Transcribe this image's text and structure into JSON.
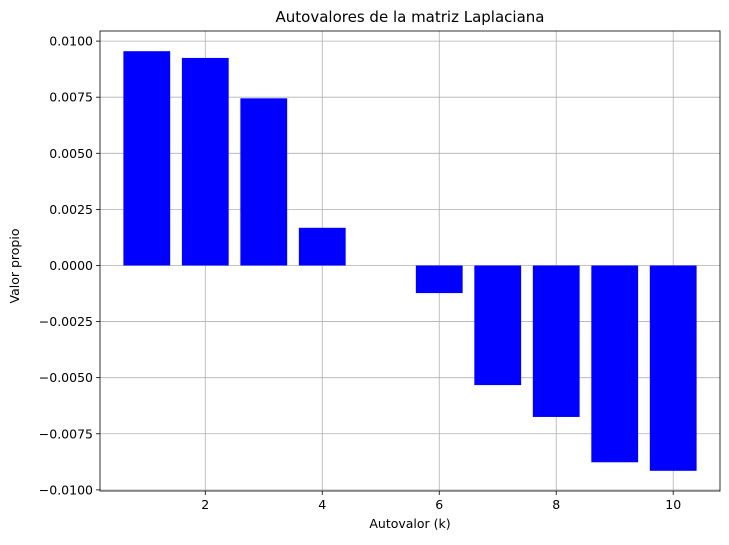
{
  "chart_data": {
    "type": "bar",
    "title": "Autovalores de la matriz Laplaciana",
    "xlabel": "Autovalor (k)",
    "ylabel": "Valor propio",
    "x": [
      1,
      2,
      3,
      4,
      5,
      6,
      7,
      8,
      9,
      10
    ],
    "values": [
      0.00955,
      0.00925,
      0.00745,
      0.00168,
      0.0,
      -0.00123,
      -0.00533,
      -0.00675,
      -0.00877,
      -0.00915
    ],
    "xlim": [
      0.2,
      10.8
    ],
    "ylim": [
      -0.01005,
      0.01045
    ],
    "xticks": [
      2,
      4,
      6,
      8,
      10
    ],
    "xtick_labels": [
      "2",
      "4",
      "6",
      "8",
      "10"
    ],
    "yticks": [
      -0.01,
      -0.0075,
      -0.005,
      -0.0025,
      0.0,
      0.0025,
      0.005,
      0.0075,
      0.01
    ],
    "ytick_labels": [
      "−0.0100",
      "−0.0075",
      "−0.0050",
      "−0.0025",
      "0.0000",
      "0.0025",
      "0.0050",
      "0.0075",
      "0.0100"
    ],
    "bar_width": 0.8,
    "bar_color": "#0000ff",
    "grid": true
  }
}
